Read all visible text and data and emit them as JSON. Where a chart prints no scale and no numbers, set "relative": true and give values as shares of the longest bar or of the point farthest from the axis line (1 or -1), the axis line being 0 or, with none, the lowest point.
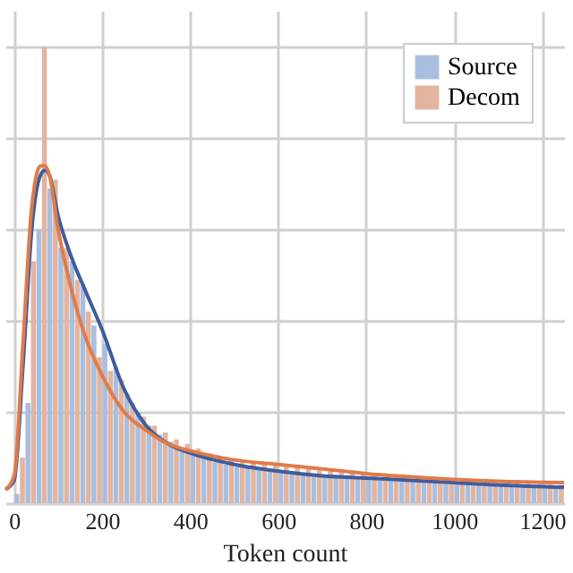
{
  "chart_data": {
    "type": "histogram",
    "xlabel": "Token count",
    "relative": true,
    "grid": true,
    "legend": "top right",
    "tick_labels": "x",
    "xlim": [
      -20,
      1250
    ],
    "xticks": [
      0,
      200,
      400,
      600,
      800,
      1000,
      1200
    ],
    "bins": [
      0,
      25,
      50,
      75,
      100,
      125,
      150,
      175,
      200,
      225,
      250,
      275,
      300,
      325,
      350,
      375,
      400,
      425,
      450,
      475,
      500,
      525,
      550,
      575,
      600,
      625,
      650,
      675,
      700,
      725,
      750,
      775,
      800,
      825,
      850,
      875,
      900,
      925,
      950,
      975,
      1000,
      1025,
      1050,
      1075,
      1100,
      1125,
      1150,
      1175,
      1200,
      1225,
      1250
    ],
    "series": [
      {
        "name": "Source",
        "color": "#a9bfdf",
        "values": [
          0.02,
          0.22,
          0.6,
          0.69,
          0.56,
          0.53,
          0.48,
          0.39,
          0.35,
          0.3,
          0.24,
          0.2,
          0.17,
          0.15,
          0.135,
          0.12,
          0.11,
          0.1,
          0.09,
          0.085,
          0.08,
          0.077,
          0.074,
          0.071,
          0.068,
          0.066,
          0.064,
          0.062,
          0.06,
          0.058,
          0.056,
          0.054,
          0.052,
          0.05,
          0.049,
          0.048,
          0.047,
          0.046,
          0.045,
          0.044,
          0.043,
          0.042,
          0.041,
          0.04,
          0.039,
          0.038,
          0.037,
          0.036,
          0.035,
          0.034
        ]
      },
      {
        "name": "Decom",
        "color": "#e3b4a0",
        "values": [
          0.1,
          0.53,
          1.0,
          0.71,
          0.56,
          0.49,
          0.42,
          0.32,
          0.29,
          0.27,
          0.22,
          0.19,
          0.17,
          0.155,
          0.14,
          0.13,
          0.12,
          0.11,
          0.1,
          0.095,
          0.09,
          0.088,
          0.085,
          0.082,
          0.08,
          0.078,
          0.075,
          0.072,
          0.07,
          0.068,
          0.066,
          0.064,
          0.062,
          0.06,
          0.058,
          0.056,
          0.055,
          0.054,
          0.052,
          0.05,
          0.049,
          0.048,
          0.047,
          0.046,
          0.045,
          0.044,
          0.043,
          0.042,
          0.041,
          0.04
        ]
      },
      {
        "type": "line",
        "color": "#3d5d9e",
        "x": [
          -20,
          0,
          20,
          40,
          60,
          70,
          80,
          100,
          130,
          160,
          200,
          250,
          300,
          350,
          400,
          500,
          600,
          700,
          800,
          900,
          1000,
          1100,
          1250
        ],
        "values": [
          0.03,
          0.05,
          0.3,
          0.6,
          0.72,
          0.73,
          0.72,
          0.63,
          0.54,
          0.47,
          0.38,
          0.25,
          0.17,
          0.13,
          0.11,
          0.085,
          0.07,
          0.06,
          0.055,
          0.05,
          0.045,
          0.04,
          0.035
        ]
      },
      {
        "type": "line",
        "color": "#e07b4a",
        "x": [
          -20,
          0,
          20,
          40,
          60,
          70,
          80,
          100,
          130,
          160,
          200,
          250,
          300,
          350,
          400,
          500,
          600,
          700,
          800,
          900,
          1000,
          1100,
          1250
        ],
        "values": [
          0.03,
          0.06,
          0.35,
          0.65,
          0.74,
          0.74,
          0.72,
          0.6,
          0.47,
          0.37,
          0.28,
          0.2,
          0.16,
          0.13,
          0.115,
          0.095,
          0.085,
          0.075,
          0.065,
          0.058,
          0.052,
          0.048,
          0.045
        ]
      }
    ]
  }
}
